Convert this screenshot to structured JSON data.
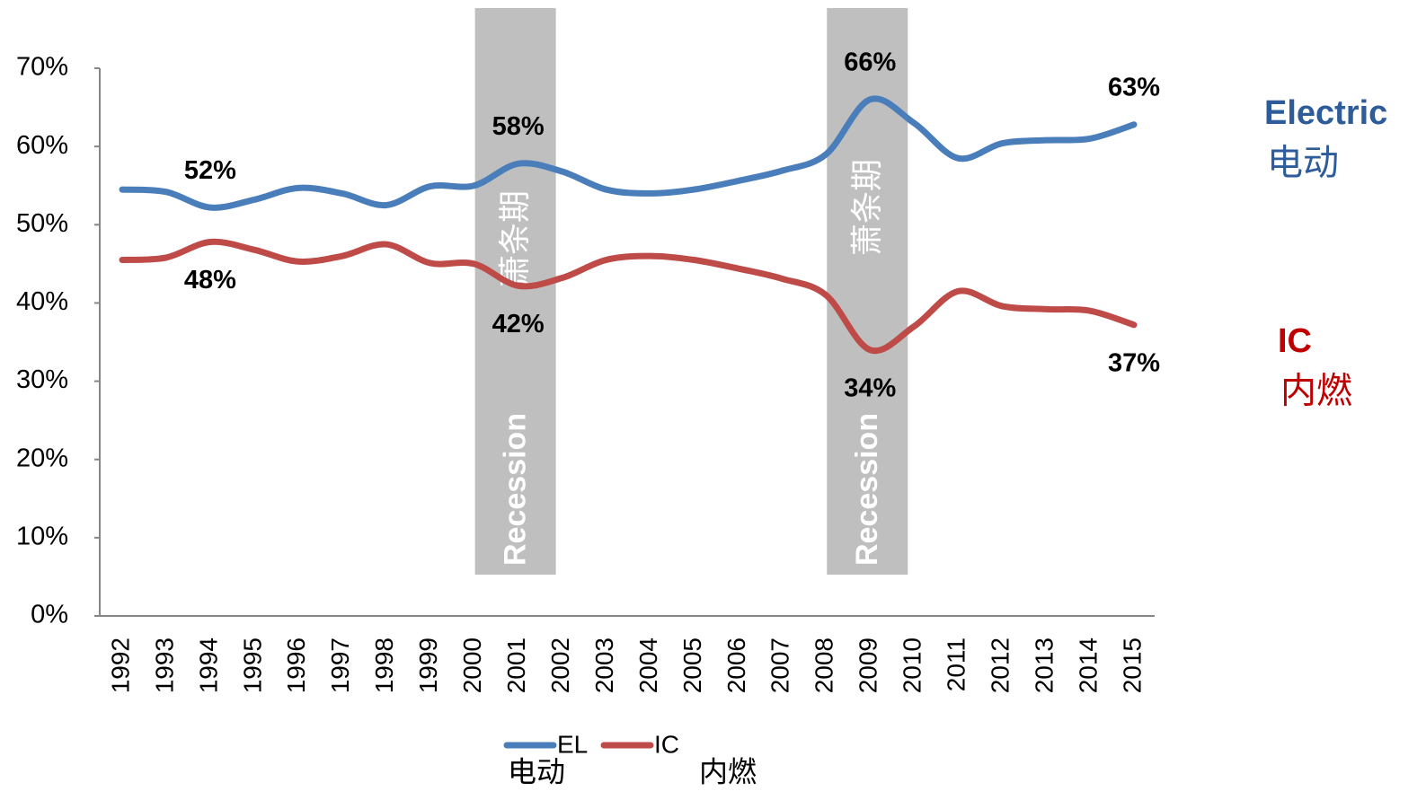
{
  "chart_data": {
    "type": "line",
    "categories": [
      "1992",
      "1993",
      "1994",
      "1995",
      "1996",
      "1997",
      "1998",
      "1999",
      "2000",
      "2001",
      "2002",
      "2003",
      "2004",
      "2005",
      "2006",
      "2007",
      "2008",
      "2009",
      "2010",
      "2011",
      "2012",
      "2013",
      "2014",
      "2015"
    ],
    "series": [
      {
        "name": "EL",
        "legend_sub": "电动",
        "color": "#4a7ebb",
        "values": [
          54.5,
          54.2,
          52.2,
          53.2,
          54.7,
          54.0,
          52.5,
          54.9,
          55.0,
          57.8,
          56.8,
          54.5,
          54.0,
          54.5,
          55.6,
          56.9,
          59.0,
          66.0,
          63.0,
          58.5,
          60.4,
          60.8,
          61.0,
          62.8
        ],
        "value_labels": [
          null,
          null,
          "52%",
          null,
          null,
          null,
          null,
          null,
          null,
          "58%",
          null,
          null,
          null,
          null,
          null,
          null,
          null,
          "66%",
          null,
          null,
          null,
          null,
          null,
          "63%"
        ]
      },
      {
        "name": "IC",
        "legend_sub": "内燃",
        "color": "#be4b48",
        "values": [
          45.5,
          45.8,
          47.8,
          46.8,
          45.3,
          46.0,
          47.5,
          45.1,
          45.0,
          42.2,
          43.2,
          45.5,
          46.0,
          45.5,
          44.4,
          43.1,
          41.0,
          34.0,
          37.0,
          41.5,
          39.6,
          39.2,
          39.0,
          37.2
        ],
        "value_labels": [
          null,
          null,
          "48%",
          null,
          null,
          null,
          null,
          null,
          null,
          "42%",
          null,
          null,
          null,
          null,
          null,
          null,
          null,
          "34%",
          null,
          null,
          null,
          null,
          null,
          "37%"
        ]
      }
    ],
    "side_labels": [
      {
        "text": "Electric",
        "sub": "电动",
        "color": "#2e5c9a"
      },
      {
        "text": "IC",
        "sub": "内燃",
        "color": "#c00000"
      }
    ],
    "recessions": [
      {
        "category": "2001",
        "label": "Recession",
        "label_cn": "萧条期"
      },
      {
        "category": "2009",
        "label": "Recession",
        "label_cn": "萧条期"
      }
    ],
    "ylim": [
      0,
      70
    ],
    "yticks": [
      {
        "value": 0,
        "label": "0%"
      },
      {
        "value": 10,
        "label": "10%"
      },
      {
        "value": 20,
        "label": "20%"
      },
      {
        "value": 30,
        "label": "30%"
      },
      {
        "value": 40,
        "label": "40%"
      },
      {
        "value": 50,
        "label": "50%"
      },
      {
        "value": 60,
        "label": "60%"
      },
      {
        "value": 70,
        "label": "70%"
      }
    ],
    "grid": false
  }
}
